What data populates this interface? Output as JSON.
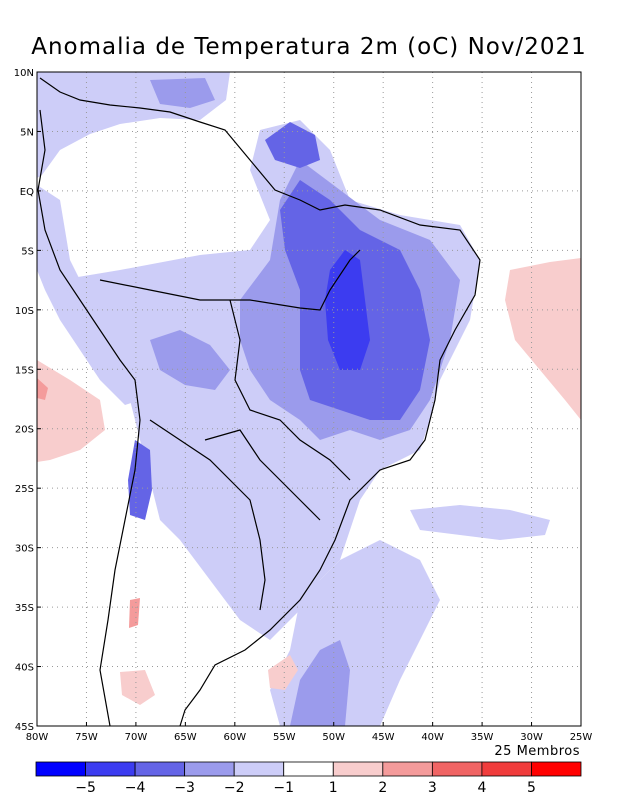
{
  "title": "Anomalia de Temperatura 2m (oC) Nov/2021",
  "members_label": "25 Membros",
  "map": {
    "lon_ticks": [
      "80W",
      "75W",
      "70W",
      "65W",
      "60W",
      "55W",
      "50W",
      "45W",
      "40W",
      "35W",
      "30W",
      "25W"
    ],
    "lat_ticks": [
      "10N",
      "5N",
      "EQ",
      "5S",
      "10S",
      "15S",
      "20S",
      "25S",
      "30S",
      "35S",
      "40S",
      "45S"
    ],
    "lon_range": [
      -80,
      -25
    ],
    "lat_range": [
      -45,
      10
    ],
    "grid": true
  },
  "colorbar": {
    "labels": [
      "-5",
      "-4",
      "-3",
      "-2",
      "-1",
      "1",
      "2",
      "3",
      "4",
      "5"
    ],
    "colors": [
      "#0000ff",
      "#3c3cf0",
      "#6464e6",
      "#9b9bec",
      "#cdcdf8",
      "#ffffff",
      "#f8cdcd",
      "#f49b9b",
      "#f06464",
      "#f03c3c",
      "#ff0000"
    ]
  },
  "anomaly_colors": {
    "m1": "#cdcdf8",
    "m2": "#9b9bec",
    "m3": "#6464e6",
    "m4": "#3c3cf0",
    "p1": "#f8cdcd",
    "p2": "#f49b9b"
  }
}
